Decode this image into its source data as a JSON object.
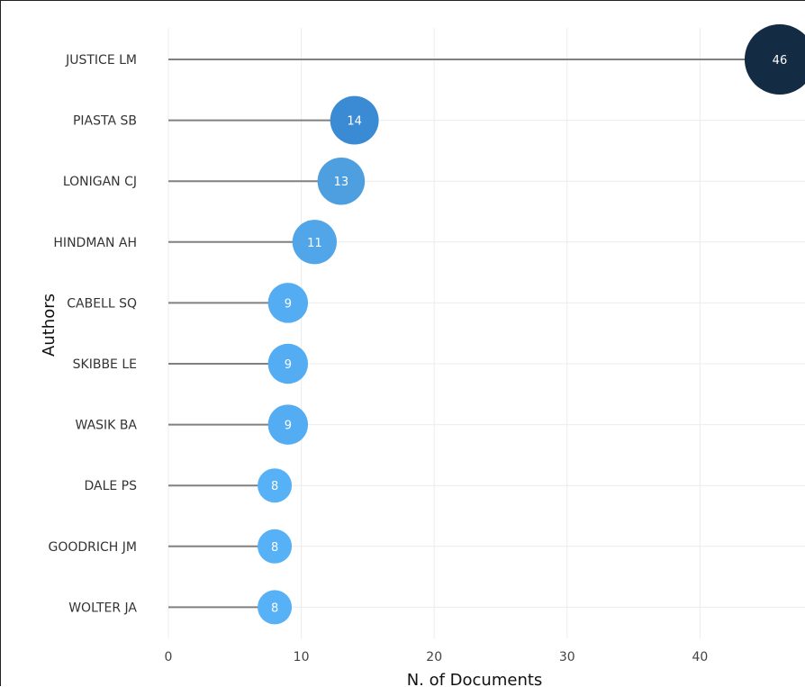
{
  "chart_data": {
    "type": "lollipop",
    "orientation": "horizontal",
    "xlabel": "N. of Documents",
    "ylabel": "Authors",
    "xlim": [
      0,
      47
    ],
    "xticks": [
      0,
      10,
      20,
      30,
      40
    ],
    "grid": true,
    "categories": [
      "JUSTICE LM",
      "PIASTA SB",
      "LONIGAN CJ",
      "HINDMAN AH",
      "CABELL SQ",
      "SKIBBE LE",
      "WASIK BA",
      "DALE PS",
      "GOODRICH JM",
      "WOLTER JA"
    ],
    "values": [
      46,
      14,
      13,
      11,
      9,
      9,
      9,
      8,
      8,
      8
    ],
    "colors": {
      "stem": "#808080",
      "grid": "#ececec",
      "high": "#132b43",
      "mid": "#3a8ad4",
      "low": "#56b1f7"
    }
  }
}
